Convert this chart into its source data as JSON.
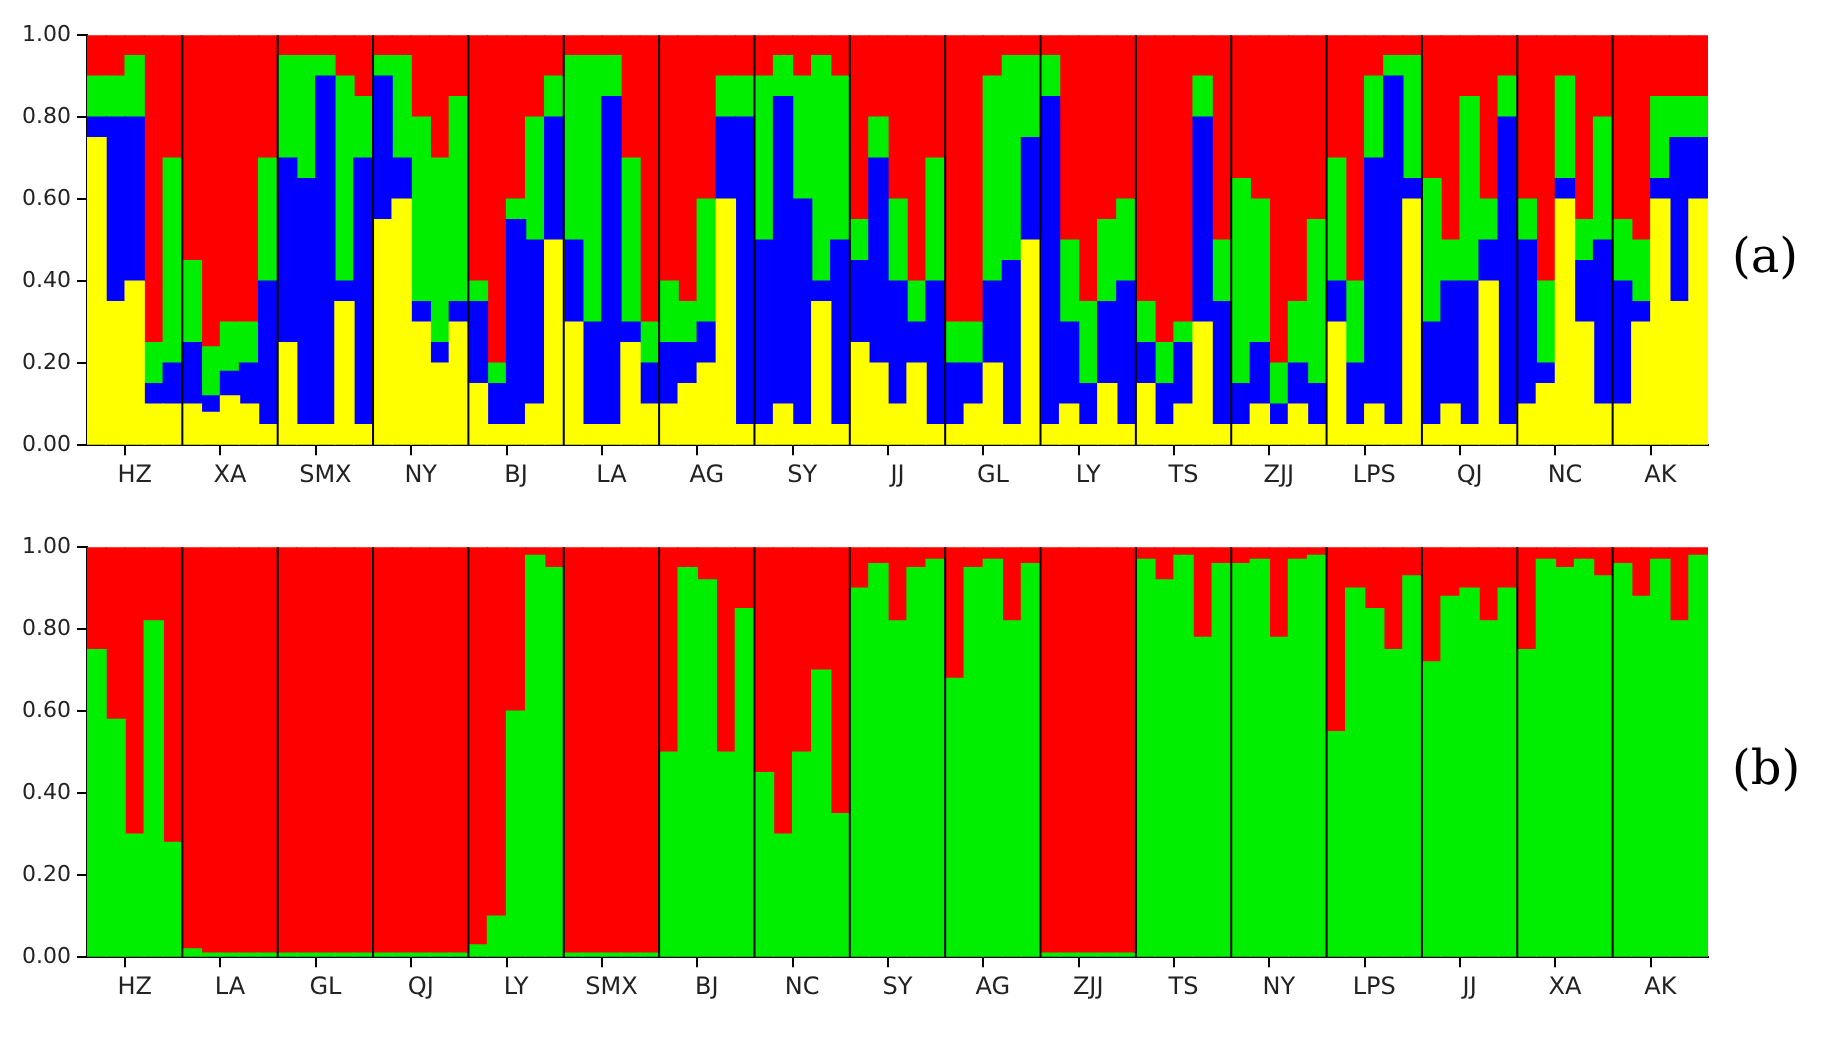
{
  "chart_data": [
    {
      "type": "bar",
      "stacked": true,
      "annotations": [
        "(a)"
      ],
      "grid": false,
      "legend": false,
      "categories": [
        null,
        null,
        "HZ",
        null,
        null,
        null,
        null,
        "XA",
        null,
        null,
        null,
        null,
        "SMX",
        null,
        null,
        null,
        null,
        "NY",
        null,
        null,
        null,
        null,
        "BJ",
        null,
        null,
        null,
        null,
        "LA",
        null,
        null,
        null,
        null,
        "AG",
        null,
        null,
        null,
        null,
        "SY",
        null,
        null,
        null,
        null,
        "JJ",
        null,
        null,
        null,
        null,
        "GL",
        null,
        null,
        null,
        null,
        "LY",
        null,
        null,
        null,
        null,
        "TS",
        null,
        null,
        null,
        null,
        "ZJJ",
        null,
        null,
        null,
        null,
        "LPS",
        null,
        null,
        null,
        null,
        "QJ",
        null,
        null,
        null,
        null,
        "NC",
        null,
        null,
        null,
        null,
        "AK",
        null,
        null
      ],
      "ylim": [
        0,
        1
      ],
      "yticks": [
        {
          "value": 0,
          "label": "0.00"
        },
        {
          "value": 0.2,
          "label": "0.20"
        },
        {
          "value": 0.4,
          "label": "0.40"
        },
        {
          "value": 0.6,
          "label": "0.60"
        },
        {
          "value": 0.8,
          "label": "0.80"
        },
        {
          "value": 1,
          "label": "1.00"
        }
      ],
      "series": [
        {
          "color": "#ffff00",
          "values": [
            0.75,
            0.35,
            0.4,
            0.1,
            0.1,
            0.1,
            0.08,
            0.12,
            0.1,
            0.05,
            0.25,
            0.05,
            0.05,
            0.35,
            0.05,
            0.55,
            0.6,
            0.3,
            0.2,
            0.3,
            0.15,
            0.05,
            0.05,
            0.1,
            0.5,
            0.3,
            0.05,
            0.05,
            0.25,
            0.1,
            0.1,
            0.15,
            0.2,
            0.6,
            0.05,
            0.05,
            0.1,
            0.05,
            0.35,
            0.05,
            0.25,
            0.2,
            0.1,
            0.2,
            0.05,
            0.05,
            0.1,
            0.2,
            0.05,
            0.5,
            0.05,
            0.1,
            0.05,
            0.15,
            0.05,
            0.15,
            0.05,
            0.1,
            0.3,
            0.05,
            0.05,
            0.1,
            0.05,
            0.1,
            0.05,
            0.3,
            0.05,
            0.1,
            0.05,
            0.6,
            0.05,
            0.1,
            0.05,
            0.4,
            0.05,
            0.1,
            0.15,
            0.6,
            0.3,
            0.1,
            0.1,
            0.3,
            0.6,
            0.35,
            0.6
          ]
        },
        {
          "color": "#0000ff",
          "values": [
            0.05,
            0.45,
            0.4,
            0.05,
            0.1,
            0.15,
            0.04,
            0.06,
            0.1,
            0.35,
            0.45,
            0.6,
            0.85,
            0.05,
            0.65,
            0.35,
            0.1,
            0.05,
            0.05,
            0.05,
            0.2,
            0.1,
            0.5,
            0.4,
            0.3,
            0.2,
            0.25,
            0.8,
            0.05,
            0.1,
            0.15,
            0.1,
            0.1,
            0.2,
            0.75,
            0.45,
            0.75,
            0.55,
            0.05,
            0.45,
            0.2,
            0.5,
            0.3,
            0.1,
            0.35,
            0.15,
            0.1,
            0.2,
            0.4,
            0.25,
            0.8,
            0.2,
            0.1,
            0.2,
            0.35,
            0.1,
            0.1,
            0.15,
            0.5,
            0.3,
            0.1,
            0.15,
            0.05,
            0.1,
            0.1,
            0.1,
            0.15,
            0.6,
            0.85,
            0.05,
            0.25,
            0.3,
            0.35,
            0.1,
            0.75,
            0.4,
            0.05,
            0.05,
            0.15,
            0.4,
            0.3,
            0.05,
            0.05,
            0.4,
            0.15
          ]
        },
        {
          "color": "#00ee00",
          "values": [
            0.1,
            0.1,
            0.15,
            0.1,
            0.5,
            0.2,
            0.12,
            0.12,
            0.1,
            0.3,
            0.25,
            0.3,
            0.05,
            0.5,
            0.15,
            0.05,
            0.25,
            0.45,
            0.45,
            0.5,
            0.05,
            0.05,
            0.05,
            0.3,
            0.1,
            0.45,
            0.65,
            0.1,
            0.4,
            0.1,
            0.15,
            0.1,
            0.3,
            0.1,
            0.1,
            0.4,
            0.1,
            0.3,
            0.55,
            0.4,
            0.1,
            0.1,
            0.2,
            0.1,
            0.3,
            0.1,
            0.1,
            0.5,
            0.5,
            0.2,
            0.1,
            0.2,
            0.2,
            0.2,
            0.2,
            0.1,
            0.1,
            0.05,
            0.1,
            0.15,
            0.5,
            0.35,
            0.1,
            0.15,
            0.4,
            0.3,
            0.2,
            0.2,
            0.05,
            0.3,
            0.35,
            0.1,
            0.45,
            0.1,
            0.1,
            0.1,
            0.2,
            0.25,
            0.1,
            0.3,
            0.15,
            0.15,
            0.2,
            0.1,
            0.1
          ]
        },
        {
          "color": "#ff0000",
          "values": [
            0.1,
            0.1,
            0.05,
            0.75,
            0.3,
            0.55,
            0.76,
            0.7,
            0.7,
            0.3,
            0.05,
            0.05,
            0.05,
            0.1,
            0.15,
            0.05,
            0.05,
            0.2,
            0.3,
            0.15,
            0.6,
            0.8,
            0.4,
            0.2,
            0.1,
            0.05,
            0.05,
            0.05,
            0.3,
            0.7,
            0.6,
            0.65,
            0.4,
            0.1,
            0.1,
            0.1,
            0.05,
            0.1,
            0.05,
            0.1,
            0.45,
            0.2,
            0.4,
            0.6,
            0.3,
            0.7,
            0.7,
            0.1,
            0.05,
            0.05,
            0.05,
            0.5,
            0.65,
            0.45,
            0.4,
            0.65,
            0.75,
            0.7,
            0.1,
            0.5,
            0.35,
            0.4,
            0.8,
            0.65,
            0.45,
            0.3,
            0.6,
            0.1,
            0.05,
            0.05,
            0.35,
            0.5,
            0.15,
            0.4,
            0.1,
            0.4,
            0.6,
            0.1,
            0.45,
            0.2,
            0.45,
            0.5,
            0.15,
            0.15,
            0.15
          ]
        }
      ]
    },
    {
      "type": "bar",
      "stacked": true,
      "annotations": [
        "(b)"
      ],
      "grid": false,
      "legend": false,
      "categories": [
        null,
        null,
        "HZ",
        null,
        null,
        null,
        null,
        "LA",
        null,
        null,
        null,
        null,
        "GL",
        null,
        null,
        null,
        null,
        "QJ",
        null,
        null,
        null,
        null,
        "LY",
        null,
        null,
        null,
        null,
        "SMX",
        null,
        null,
        null,
        null,
        "BJ",
        null,
        null,
        null,
        null,
        "NC",
        null,
        null,
        null,
        null,
        "SY",
        null,
        null,
        null,
        null,
        "AG",
        null,
        null,
        null,
        null,
        "ZJJ",
        null,
        null,
        null,
        null,
        "TS",
        null,
        null,
        null,
        null,
        "NY",
        null,
        null,
        null,
        null,
        "LPS",
        null,
        null,
        null,
        null,
        "JJ",
        null,
        null,
        null,
        null,
        "XA",
        null,
        null,
        null,
        null,
        "AK",
        null,
        null
      ],
      "ylim": [
        0,
        1
      ],
      "yticks": [
        {
          "value": 0,
          "label": "0.00"
        },
        {
          "value": 0.2,
          "label": "0.20"
        },
        {
          "value": 0.4,
          "label": "0.40"
        },
        {
          "value": 0.6,
          "label": "0.60"
        },
        {
          "value": 0.8,
          "label": "0.80"
        },
        {
          "value": 1,
          "label": "1.00"
        }
      ],
      "series": [
        {
          "color": "#00ee00",
          "values": [
            0.75,
            0.58,
            0.3,
            0.82,
            0.28,
            0.02,
            0.01,
            0.01,
            0.01,
            0.01,
            0.01,
            0.01,
            0.01,
            0.01,
            0.01,
            0.01,
            0.01,
            0.01,
            0.01,
            0.01,
            0.03,
            0.1,
            0.6,
            0.98,
            0.95,
            0.01,
            0.01,
            0.01,
            0.01,
            0.01,
            0.5,
            0.95,
            0.92,
            0.5,
            0.85,
            0.45,
            0.3,
            0.5,
            0.7,
            0.35,
            0.9,
            0.96,
            0.82,
            0.95,
            0.97,
            0.68,
            0.95,
            0.97,
            0.82,
            0.96,
            0.01,
            0.01,
            0.01,
            0.01,
            0.01,
            0.97,
            0.92,
            0.98,
            0.78,
            0.96,
            0.96,
            0.97,
            0.78,
            0.97,
            0.98,
            0.55,
            0.9,
            0.85,
            0.75,
            0.93,
            0.72,
            0.88,
            0.9,
            0.82,
            0.9,
            0.75,
            0.97,
            0.95,
            0.97,
            0.93,
            0.96,
            0.88,
            0.97,
            0.82,
            0.98
          ]
        },
        {
          "color": "#ff0000",
          "values": [
            0.25,
            0.42,
            0.7,
            0.18,
            0.72,
            0.98,
            0.99,
            0.99,
            0.99,
            0.99,
            0.99,
            0.99,
            0.99,
            0.99,
            0.99,
            0.99,
            0.99,
            0.99,
            0.99,
            0.99,
            0.97,
            0.9,
            0.4,
            0.02,
            0.05,
            0.99,
            0.99,
            0.99,
            0.99,
            0.99,
            0.5,
            0.05,
            0.08,
            0.5,
            0.15,
            0.55,
            0.7,
            0.5,
            0.3,
            0.65,
            0.1,
            0.04,
            0.18,
            0.05,
            0.03,
            0.32,
            0.05,
            0.03,
            0.18,
            0.04,
            0.99,
            0.99,
            0.99,
            0.99,
            0.99,
            0.03,
            0.08,
            0.02,
            0.22,
            0.04,
            0.04,
            0.03,
            0.22,
            0.03,
            0.02,
            0.45,
            0.1,
            0.15,
            0.25,
            0.07,
            0.28,
            0.12,
            0.1,
            0.18,
            0.1,
            0.25,
            0.03,
            0.05,
            0.03,
            0.07,
            0.04,
            0.12,
            0.03,
            0.18,
            0.02
          ]
        }
      ]
    }
  ]
}
